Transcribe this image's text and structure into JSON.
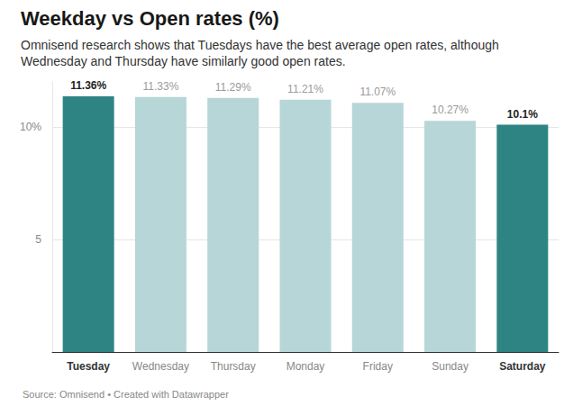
{
  "chart_data": {
    "type": "bar",
    "title": "Weekday vs Open rates (%)",
    "subtitle": "Omnisend research shows that Tuesdays have the best average open rates, although Wednesday and Thursday have similarly good open rates.",
    "source": "Source: Omnisend • Created with Datawrapper",
    "categories": [
      "Tuesday",
      "Wednesday",
      "Thursday",
      "Monday",
      "Friday",
      "Sunday",
      "Saturday"
    ],
    "values": [
      11.36,
      11.33,
      11.29,
      11.21,
      11.07,
      10.27,
      10.1
    ],
    "value_labels": [
      "11.36%",
      "11.33%",
      "11.29%",
      "11.21%",
      "11.07%",
      "10.27%",
      "10.1%"
    ],
    "colors": [
      "#2e8482",
      "#b7d6d7",
      "#b7d6d7",
      "#b7d6d7",
      "#b7d6d7",
      "#b7d6d7",
      "#2e8482"
    ],
    "ylim": [
      0,
      12
    ],
    "yticks": [
      5,
      {
        "value": 10,
        "label": "10%"
      }
    ],
    "grid": true,
    "data_labels": true
  }
}
